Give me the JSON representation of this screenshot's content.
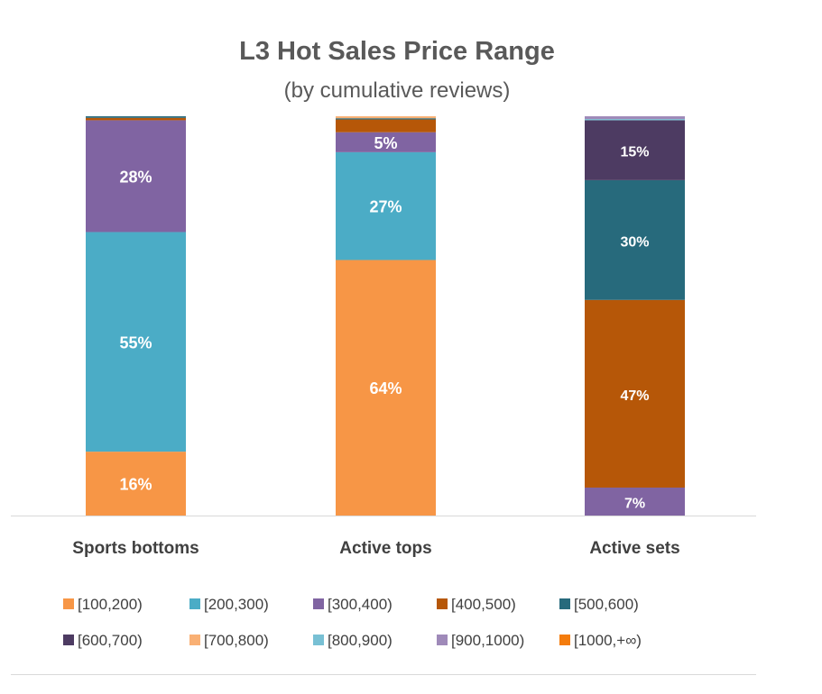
{
  "chart_data": {
    "type": "bar",
    "stacked": true,
    "normalized": true,
    "title": "L3 Hot Sales Price Range",
    "subtitle": "(by cumulative reviews)",
    "categories": [
      "Sports bottoms",
      "Active tops",
      "Active sets"
    ],
    "ylim": [
      0,
      100
    ],
    "legend_position": "bottom",
    "series": [
      {
        "name": "[100,200)",
        "color": "#F79646",
        "values": [
          16,
          64,
          0
        ],
        "labels": [
          "16%",
          "64%",
          ""
        ]
      },
      {
        "name": "[200,300)",
        "color": "#4BACC6",
        "values": [
          55,
          27,
          0
        ],
        "labels": [
          "55%",
          "27%",
          ""
        ]
      },
      {
        "name": "[300,400)",
        "color": "#8064A2",
        "values": [
          28,
          5,
          7
        ],
        "labels": [
          "28%",
          "5%",
          "7%"
        ]
      },
      {
        "name": "[400,500)",
        "color": "#B65708",
        "values": [
          0.6,
          3.2,
          47
        ],
        "labels": [
          "",
          "",
          "47%"
        ]
      },
      {
        "name": "[500,600)",
        "color": "#276A7C",
        "values": [
          0.4,
          0.3,
          30
        ],
        "labels": [
          "",
          "",
          "30%"
        ]
      },
      {
        "name": "[600,700)",
        "color": "#4D3B62",
        "values": [
          0,
          0,
          15
        ],
        "labels": [
          "",
          "",
          "15%"
        ]
      },
      {
        "name": "[700,800)",
        "color": "#F9B074",
        "values": [
          0,
          0.5,
          0
        ],
        "labels": [
          "",
          "",
          ""
        ]
      },
      {
        "name": "[800,900)",
        "color": "#78C0D4",
        "values": [
          0,
          0,
          0.3
        ],
        "labels": [
          "",
          "",
          ""
        ]
      },
      {
        "name": "[900,1000)",
        "color": "#9F8AB9",
        "values": [
          0,
          0,
          0.7
        ],
        "labels": [
          "",
          "",
          ""
        ]
      },
      {
        "name": "[1000,+∞)",
        "color": "#F47C0D",
        "values": [
          0,
          0,
          0
        ],
        "labels": [
          "",
          "",
          ""
        ]
      }
    ]
  }
}
